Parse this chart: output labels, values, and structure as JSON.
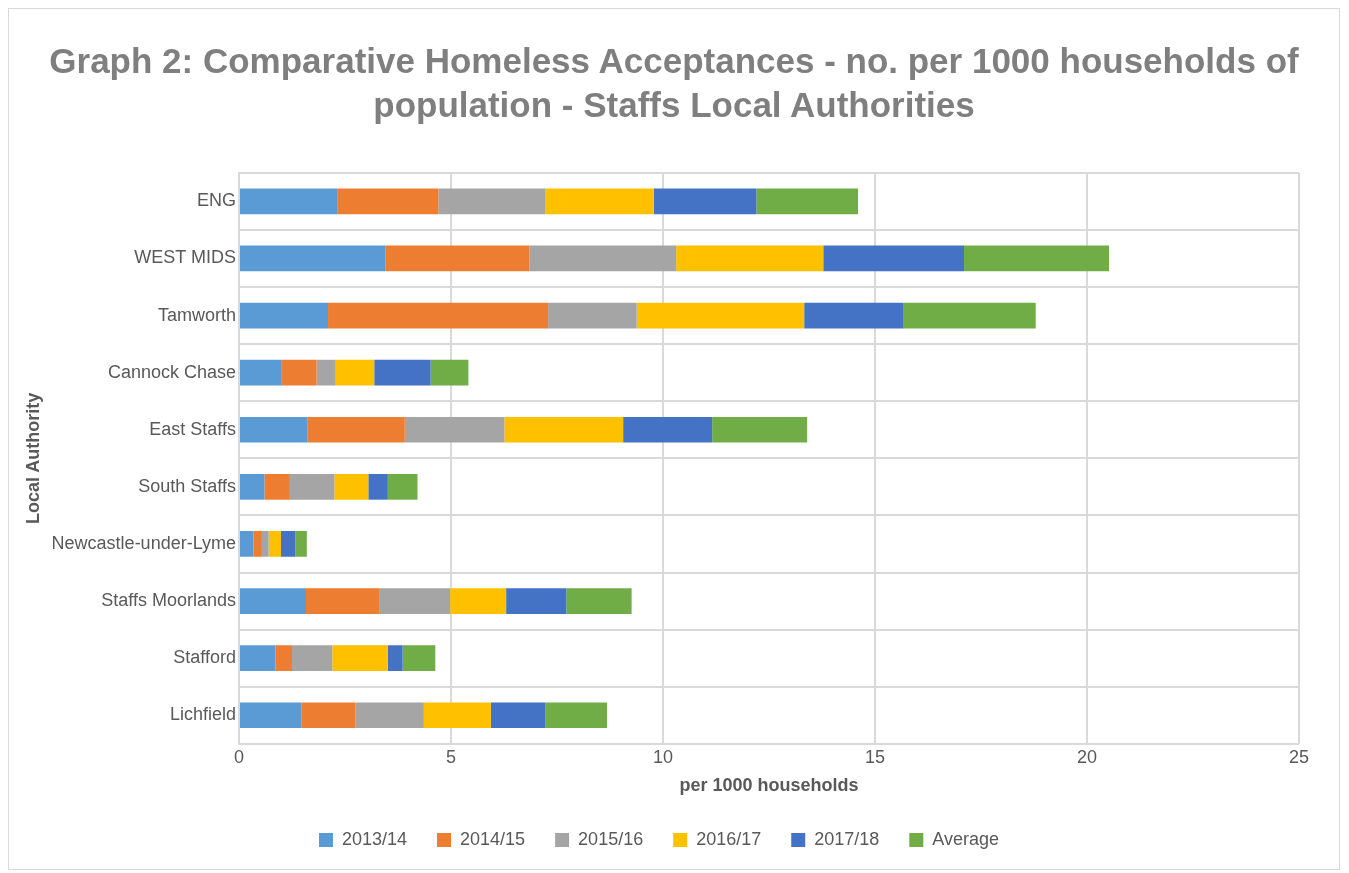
{
  "chart_data": {
    "type": "bar",
    "orientation": "horizontal",
    "stacked": true,
    "title": "Graph 2: Comparative Homeless Acceptances - no. per 1000 households of population - Staffs Local Authorities",
    "xlabel": "per 1000 households",
    "ylabel": "Local Authority",
    "categories": [
      "ENG",
      "WEST MIDS",
      "Tamworth",
      "Cannock Chase",
      "East Staffs",
      "South Staffs",
      "Newcastle-under-Lyme",
      "Staffs Moorlands",
      "Stafford",
      "Lichfield"
    ],
    "series": [
      {
        "name": "2013/14",
        "color": "#5b9bd5",
        "values": [
          2.33,
          3.45,
          2.1,
          1.01,
          1.62,
          0.6,
          0.34,
          1.58,
          0.86,
          1.47
        ]
      },
      {
        "name": "2014/15",
        "color": "#ed7d31",
        "values": [
          2.37,
          3.4,
          5.19,
          0.82,
          2.29,
          0.6,
          0.2,
          1.74,
          0.39,
          1.28
        ]
      },
      {
        "name": "2015/16",
        "color": "#a5a5a5",
        "values": [
          2.53,
          3.46,
          2.09,
          0.45,
          2.35,
          1.05,
          0.16,
          1.66,
          0.95,
          1.61
        ]
      },
      {
        "name": "2016/17",
        "color": "#ffc000",
        "values": [
          2.55,
          3.47,
          3.95,
          0.91,
          2.8,
          0.8,
          0.29,
          1.32,
          1.31,
          1.58
        ]
      },
      {
        "name": "2017/18",
        "color": "#4472c4",
        "values": [
          2.42,
          3.32,
          2.33,
          1.33,
          2.1,
          0.46,
          0.34,
          1.42,
          0.35,
          1.29
        ]
      },
      {
        "name": "Average",
        "color": "#70ad47",
        "values": [
          2.4,
          3.42,
          3.13,
          0.89,
          2.24,
          0.7,
          0.27,
          1.54,
          0.77,
          1.45
        ]
      }
    ],
    "xlim": [
      0,
      25
    ],
    "xticks": [
      0,
      5,
      10,
      15,
      20,
      25
    ],
    "grid": true,
    "legend": "bottom"
  }
}
